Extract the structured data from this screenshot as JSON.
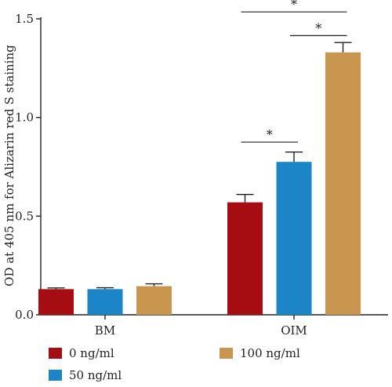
{
  "chart_data": {
    "type": "bar",
    "title": "",
    "xlabel": "",
    "ylabel": "OD at 405 nm for Alizarin red S staining",
    "ylim": [
      0,
      1.5
    ],
    "yticks": [
      "0.0",
      "0.5",
      "1.0",
      "1.5"
    ],
    "grid": false,
    "legend_position": "bottom",
    "categories": [
      "BM",
      "OIM"
    ],
    "series": [
      {
        "name": "0 ng/ml",
        "color": "#a50d12",
        "values": [
          0.13,
          0.57
        ],
        "errors": [
          0.006,
          0.04
        ]
      },
      {
        "name": "50 ng/ml",
        "color": "#1b85c8",
        "values": [
          0.13,
          0.775
        ],
        "errors": [
          0.007,
          0.05
        ]
      },
      {
        "name": "100 ng/ml",
        "color": "#c8964e",
        "values": [
          0.145,
          1.33
        ],
        "errors": [
          0.012,
          0.05
        ]
      }
    ],
    "significance": [
      {
        "label": "*",
        "category": "OIM",
        "from_series": 0,
        "to_series": 1,
        "level": 0.875
      },
      {
        "label": "*",
        "category": "OIM",
        "from_series": 1,
        "to_series": 2,
        "level": 1.415
      },
      {
        "label": "*",
        "category": "OIM",
        "from_series": 0,
        "to_series": 2,
        "level": 1.535
      }
    ]
  }
}
